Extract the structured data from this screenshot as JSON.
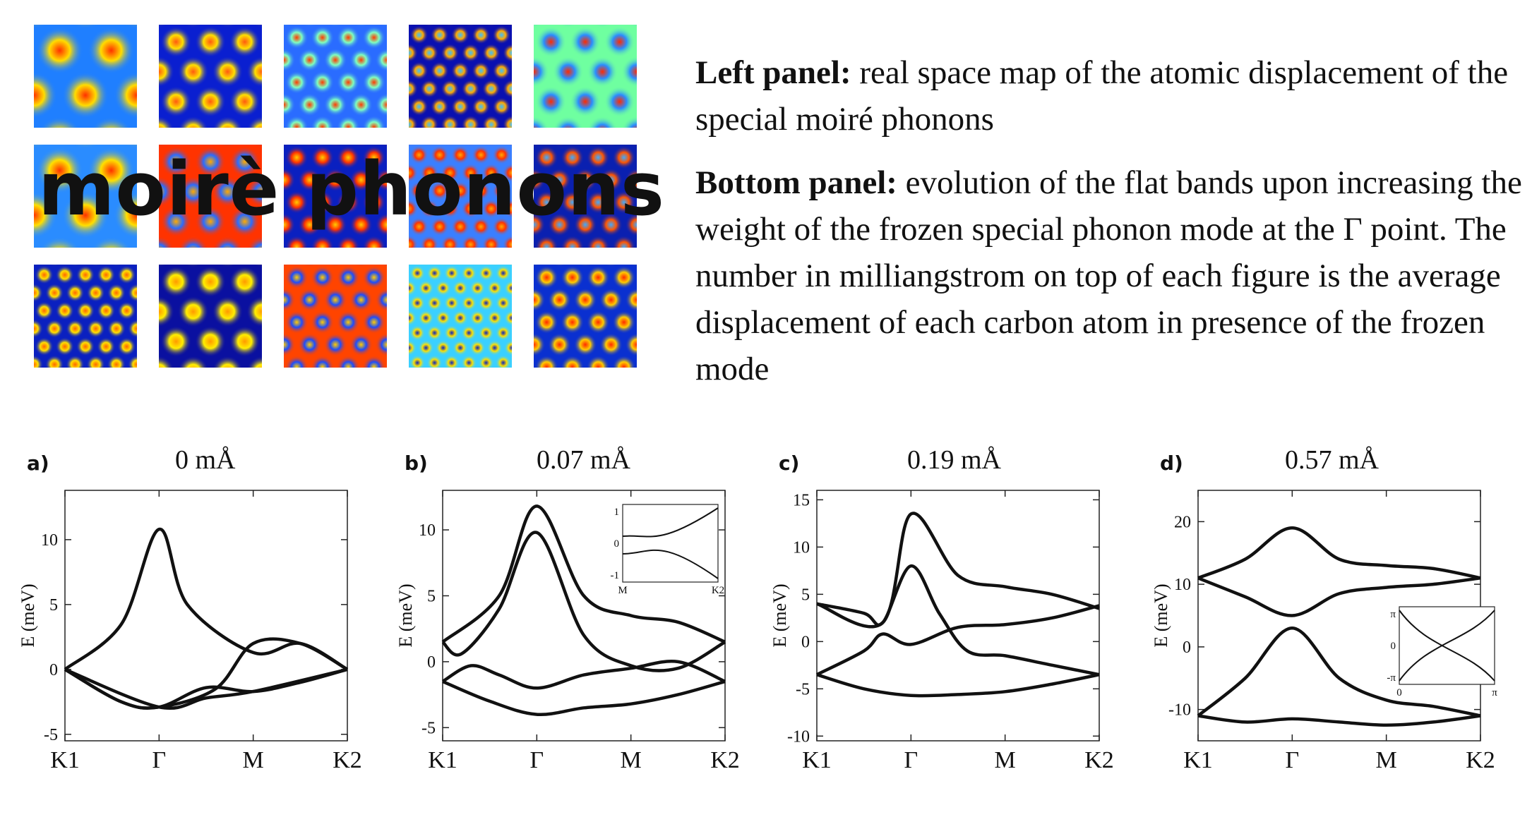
{
  "overlay_title": "moirè phonons",
  "left_panel": {
    "heading": "Left panel:",
    "text": "real space map of the atomic displacement of the special moiré phonons"
  },
  "bottom_panel": {
    "heading": "Bottom panel:",
    "text": "evolution of the flat bands upon increasing the weight of the frozen special phonon mode at the Γ point. The number in milliangstrom on top of each figure is the average displacement of each carbon atom in presence of the frozen mode"
  },
  "chart_data": [
    {
      "type": "line",
      "panel": "a)",
      "title": "0 mÅ",
      "ylabel": "E (meV)",
      "x_ticks": [
        "K1",
        "Γ",
        "M",
        "K2"
      ],
      "y_ticks": [
        -5,
        0,
        5,
        10
      ],
      "ylim": [
        -5.5,
        13.8
      ],
      "series": [
        {
          "x": [
            0,
            0.6,
            1.0,
            1.3,
            2.0,
            2.5,
            3.0
          ],
          "values": [
            0,
            3.5,
            10.8,
            5,
            1.3,
            2,
            0
          ]
        },
        {
          "x": [
            0,
            0.6,
            1.0,
            1.6,
            2.0,
            2.5,
            3.0
          ],
          "values": [
            0,
            -2.5,
            -2.9,
            -1.5,
            2,
            2,
            0
          ]
        },
        {
          "x": [
            0,
            0.6,
            1.0,
            1.5,
            2.0,
            2.5,
            3.0
          ],
          "values": [
            0,
            -2.5,
            -2.9,
            -1.4,
            -1.7,
            -1.0,
            0
          ]
        },
        {
          "x": [
            0,
            1.0,
            1.5,
            2.0,
            3.0
          ],
          "values": [
            0,
            -2.9,
            -2.2,
            -1.7,
            0
          ]
        }
      ]
    },
    {
      "type": "line",
      "panel": "b)",
      "title": "0.07 mÅ",
      "ylabel": "E (meV)",
      "x_ticks": [
        "K1",
        "Γ",
        "M",
        "K2"
      ],
      "y_ticks": [
        -5,
        0,
        5,
        10
      ],
      "ylim": [
        -6,
        13
      ],
      "series": [
        {
          "x": [
            0,
            0.6,
            1.0,
            1.5,
            2.0,
            2.5,
            3.0
          ],
          "values": [
            1.5,
            5,
            11.8,
            5,
            3.5,
            3,
            1.5
          ]
        },
        {
          "x": [
            0,
            0.2,
            0.6,
            1.0,
            1.5,
            2.0,
            2.5,
            3.0
          ],
          "values": [
            1.5,
            0.6,
            4,
            9.8,
            2,
            -0.3,
            -0.5,
            1.5
          ]
        },
        {
          "x": [
            0,
            0.3,
            0.6,
            1.0,
            1.5,
            2.0,
            2.5,
            3.0
          ],
          "values": [
            -1.5,
            -0.3,
            -1,
            -2,
            -1,
            -0.5,
            0,
            -1.5
          ]
        },
        {
          "x": [
            0,
            0.5,
            1.0,
            1.5,
            2.0,
            2.5,
            3.0
          ],
          "values": [
            -1.5,
            -3,
            -4,
            -3.5,
            -3.2,
            -2.5,
            -1.5
          ]
        }
      ],
      "inset": {
        "x_ticks": [
          "M",
          "K2"
        ],
        "y_ticks": [
          1,
          0,
          -1
        ]
      }
    },
    {
      "type": "line",
      "panel": "c)",
      "title": "0.19 mÅ",
      "ylabel": "E (meV)",
      "x_ticks": [
        "K1",
        "Γ",
        "M",
        "K2"
      ],
      "y_ticks": [
        -10,
        -5,
        0,
        5,
        10,
        15
      ],
      "ylim": [
        -10.5,
        16
      ],
      "series": [
        {
          "x": [
            0,
            0.7,
            1.0,
            1.5,
            2.0,
            2.5,
            3.0
          ],
          "values": [
            4,
            2,
            13.5,
            7,
            5.8,
            5,
            3.5
          ]
        },
        {
          "x": [
            0,
            0.5,
            0.7,
            1.0,
            1.3,
            1.6,
            2.0,
            2.5,
            3.0
          ],
          "values": [
            4,
            3,
            2,
            8,
            3,
            -1,
            -1.5,
            -2.5,
            -3.5
          ]
        },
        {
          "x": [
            0,
            0.5,
            0.7,
            1.0,
            1.5,
            2.0,
            2.5,
            3.0
          ],
          "values": [
            -3.5,
            -1,
            0.8,
            -0.3,
            1.5,
            1.8,
            2.5,
            3.8
          ]
        },
        {
          "x": [
            0,
            0.5,
            1.0,
            1.5,
            2.0,
            2.5,
            3.0
          ],
          "values": [
            -3.5,
            -5,
            -5.7,
            -5.6,
            -5.3,
            -4.5,
            -3.5
          ]
        }
      ]
    },
    {
      "type": "line",
      "panel": "d)",
      "title": "0.57 mÅ",
      "ylabel": "E (meV)",
      "x_ticks": [
        "K1",
        "Γ",
        "M",
        "K2"
      ],
      "y_ticks": [
        -10,
        0,
        10,
        20
      ],
      "ylim": [
        -15,
        25
      ],
      "series": [
        {
          "x": [
            0,
            0.5,
            1.0,
            1.5,
            2.0,
            2.5,
            3.0
          ],
          "values": [
            11,
            14,
            19,
            14,
            13,
            12.5,
            11
          ]
        },
        {
          "x": [
            0,
            0.5,
            1.0,
            1.5,
            2.0,
            2.5,
            3.0
          ],
          "values": [
            11,
            8,
            5,
            8.5,
            9.5,
            10,
            11
          ]
        },
        {
          "x": [
            0,
            0.5,
            1.0,
            1.5,
            2.0,
            2.5,
            3.0
          ],
          "values": [
            -11,
            -5,
            3,
            -5,
            -8.5,
            -9.5,
            -11
          ]
        },
        {
          "x": [
            0,
            0.5,
            1.0,
            1.5,
            2.0,
            2.5,
            3.0
          ],
          "values": [
            -11,
            -12,
            -11.5,
            -12,
            -12.5,
            -12,
            -11
          ]
        }
      ],
      "inset": {
        "x_ticks": [
          "0",
          "π"
        ],
        "y_ticks": [
          "π",
          "0",
          "-π"
        ]
      }
    }
  ]
}
